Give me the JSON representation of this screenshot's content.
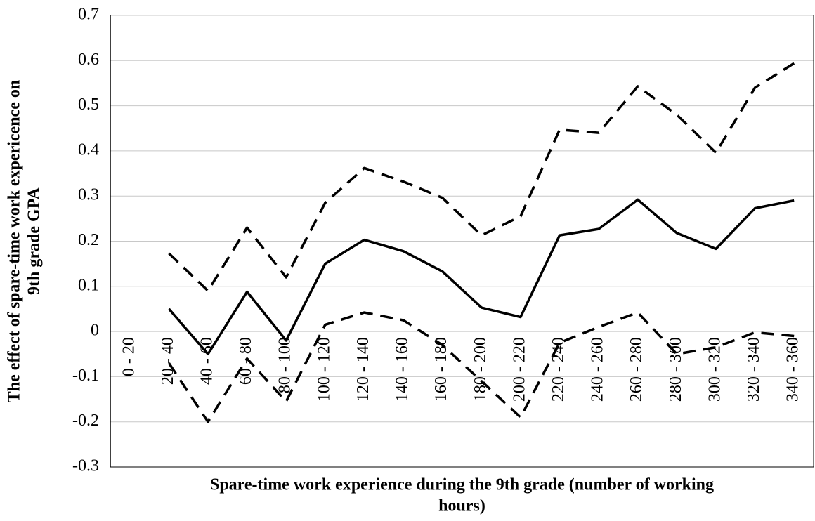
{
  "chart_data": {
    "type": "line",
    "ylabel": [
      "The effect of spare-time work expericence on",
      "9th grade GPA"
    ],
    "xlabel": [
      "Spare-time work experience during the 9th grade (number of working",
      "hours)"
    ],
    "categories": [
      "0 - 20",
      "20 - 40",
      "40 - 60",
      "60 - 80",
      "80 - 100",
      "100 - 120",
      "120 - 140",
      "140 - 160",
      "160 - 180",
      "180 - 200",
      "200 - 220",
      "220 - 240",
      "240 - 260",
      "260 - 280",
      "280 - 300",
      "300 - 320",
      "320 - 340",
      "340 - 360"
    ],
    "series": [
      {
        "color": "#000000",
        "dashed": false,
        "values": [
          null,
          0.05,
          -0.05,
          0.088,
          -0.02,
          0.15,
          0.203,
          0.178,
          0.133,
          0.053,
          0.032,
          0.213,
          0.227,
          0.292,
          0.218,
          0.183,
          0.273,
          0.29
        ]
      },
      {
        "color": "#000000",
        "dashed": true,
        "values": [
          null,
          0.173,
          0.09,
          0.23,
          0.12,
          0.285,
          0.362,
          0.332,
          0.296,
          0.213,
          0.255,
          0.447,
          0.44,
          0.543,
          0.48,
          0.396,
          0.54,
          0.594
        ]
      },
      {
        "color": "#000000",
        "dashed": true,
        "values": [
          null,
          -0.07,
          -0.2,
          -0.06,
          -0.155,
          0.015,
          0.042,
          0.025,
          -0.03,
          -0.11,
          -0.19,
          -0.025,
          0.01,
          0.042,
          -0.05,
          -0.035,
          -0.002,
          -0.01
        ]
      }
    ],
    "ylim": [
      -0.3,
      0.7
    ],
    "yticks": [
      -0.3,
      -0.2,
      -0.1,
      0,
      0.1,
      0.2,
      0.3,
      0.4,
      0.5,
      0.6,
      0.7
    ],
    "grid": true
  }
}
